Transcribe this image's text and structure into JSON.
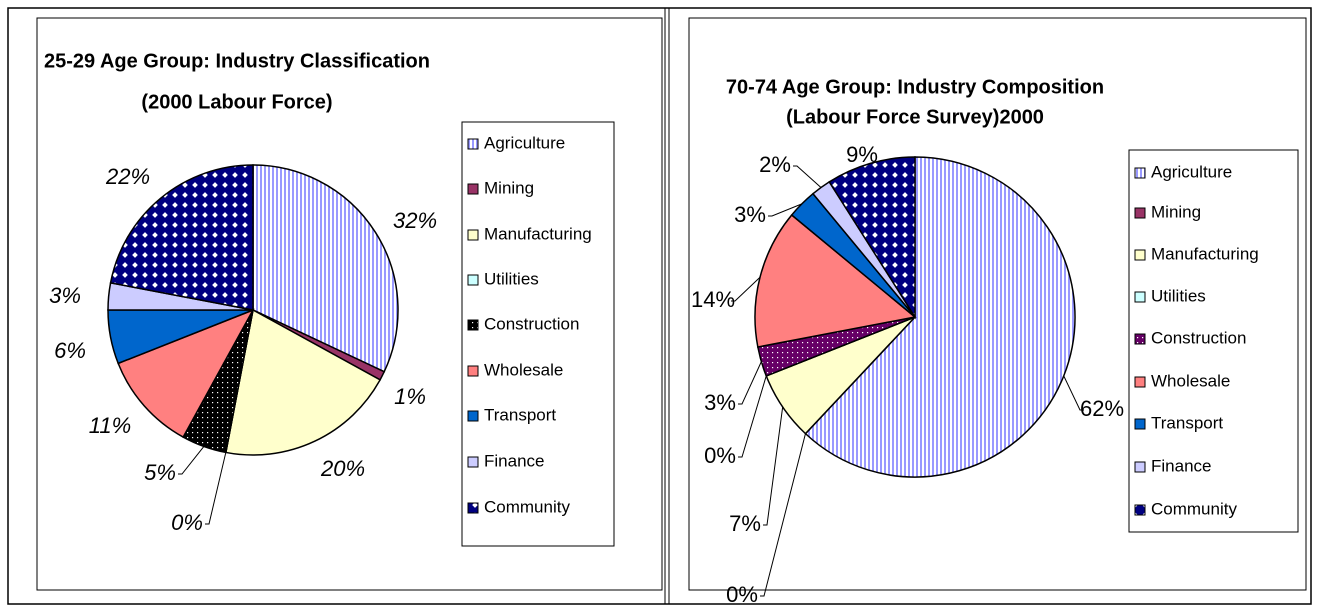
{
  "chart_data": [
    {
      "type": "pie",
      "title": [
        "25-29 Age Group: Industry Classification",
        "(2000 Labour Force)"
      ],
      "categories": [
        "Agriculture",
        "Mining",
        "Manufacturing",
        "Utilities",
        "Construction",
        "Wholesale",
        "Transport",
        "Finance",
        "Community"
      ],
      "values": [
        32,
        1,
        20,
        0,
        5,
        11,
        6,
        3,
        22
      ],
      "value_labels": [
        "32%",
        "1%",
        "20%",
        "0%",
        "5%",
        "11%",
        "6%",
        "3%",
        "22%"
      ],
      "colors": [
        "#9999ff",
        "#993366",
        "#ffffcc",
        "#ccffff",
        "#000000",
        "#ff8080",
        "#0066cc",
        "#ccccff",
        "#000080"
      ],
      "patterns": [
        "stripes",
        null,
        null,
        null,
        "dots",
        null,
        null,
        null,
        "diamonds"
      ],
      "legend": "right",
      "label_style": "italic"
    },
    {
      "type": "pie",
      "title": [
        "70-74 Age Group: Industry Composition",
        "(Labour Force Survey)2000"
      ],
      "categories": [
        "Agriculture",
        "Mining",
        "Manufacturing",
        "Utilities",
        "Construction",
        "Wholesale",
        "Transport",
        "Finance",
        "Community"
      ],
      "values": [
        62,
        0,
        7,
        0,
        3,
        14,
        3,
        2,
        9
      ],
      "value_labels": [
        "62%",
        "0%",
        "7%",
        "0%",
        "3%",
        "14%",
        "3%",
        "2%",
        "9%"
      ],
      "colors": [
        "#9999ff",
        "#993366",
        "#ffffcc",
        "#ccffff",
        "#660066",
        "#ff8080",
        "#0066cc",
        "#ccccff",
        "#000080"
      ],
      "patterns": [
        "stripes",
        null,
        null,
        null,
        "dots",
        null,
        null,
        null,
        "diamonds"
      ],
      "legend": "right",
      "label_style": "normal"
    }
  ]
}
